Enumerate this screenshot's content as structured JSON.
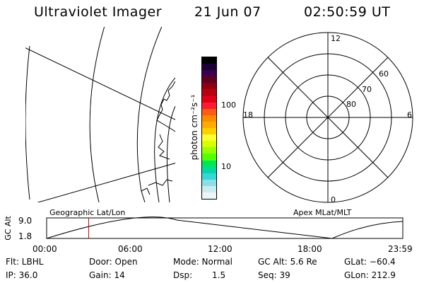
{
  "header": {
    "instrument": "Ultraviolet Imager",
    "date": "21 Jun 07",
    "time": "02:50:59 UT"
  },
  "colorbar": {
    "unit_label": "photon cm⁻²s⁻¹",
    "ticks": [
      "100",
      "10"
    ],
    "colors": [
      "#000000",
      "#1a0033",
      "#3a0050",
      "#5c0028",
      "#8a0012",
      "#b80012",
      "#e0001a",
      "#ff1a33",
      "#ff5a1a",
      "#ff8a00",
      "#ffaa00",
      "#ffd000",
      "#ffff33",
      "#d8ff00",
      "#9cff00",
      "#55ff00",
      "#00e64d",
      "#00d9a0",
      "#33d9d9",
      "#88e0e8",
      "#c8ecf0",
      "#eaf6f8"
    ]
  },
  "polar_plot": {
    "labels": {
      "top": "12",
      "bottom": "0",
      "left": "18",
      "right": "6"
    },
    "latitudes": [
      "60",
      "70",
      "80"
    ]
  },
  "map_panel": {
    "caption": "Geographic Lat/Lon"
  },
  "polar_caption": "Apex MLat/MLT",
  "alt_plot": {
    "ylabel": "GC Alt",
    "y_ticks": [
      "9.0",
      "1.8"
    ],
    "x_ticks": [
      "00:00",
      "06:00",
      "12:00",
      "18:00",
      "23:59"
    ],
    "current_time_fraction": 0.118
  },
  "status": {
    "flt": "Flt: LBHL",
    "ip": "IP: 36.0",
    "door": "Door: Open",
    "gain": "Gain: 14",
    "mode": "Mode: Normal",
    "dsp_label": "Dsp:",
    "dsp_value": "1.5",
    "gc_alt": "GC Alt: 5.6 Re",
    "seq": "Seq: 39",
    "glat": "GLat: −60.4",
    "glon": "GLon: 212.9"
  },
  "colors": {
    "foreground": "#000000",
    "background": "#ffffff",
    "time_marker": "#cc0000"
  }
}
